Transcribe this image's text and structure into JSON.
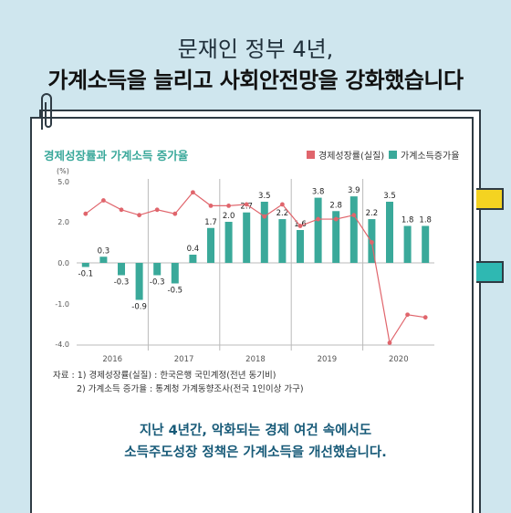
{
  "headline": {
    "line1": "문재인 정부 4년,",
    "line2": "가계소득을 늘리고 사회안전망을 강화했습니다"
  },
  "colors": {
    "background": "#cfe6ee",
    "line_series": "#e0656c",
    "bar_series": "#3aa99a",
    "tab_yellow": "#f4d321",
    "tab_teal": "#2fb8b2"
  },
  "chart_data": {
    "type": "bar",
    "title": "경제성장률과 가계소득 증가율",
    "yunit": "(%)",
    "ylim": [
      -4.0,
      5.0
    ],
    "yticks": [
      "5.0",
      "2.0",
      "0.0",
      "-1.0",
      "-4.0"
    ],
    "years": [
      "2016",
      "2017",
      "2018",
      "2019",
      "2020"
    ],
    "legend_position": "top-right",
    "grid": false,
    "series": [
      {
        "name": "경제성장률(실질)",
        "type": "line",
        "values": [
          2.6,
          3.6,
          2.9,
          2.5,
          2.9,
          2.6,
          4.2,
          3.2,
          3.2,
          3.3,
          2.4,
          3.3,
          1.8,
          2.2,
          2.2,
          2.5,
          1.0,
          -3.9,
          -1.8,
          -2.0
        ]
      },
      {
        "name": "가계소득증가율",
        "type": "bar",
        "values": [
          -0.1,
          0.3,
          -0.3,
          -0.9,
          -0.3,
          -0.5,
          0.4,
          1.7,
          2.0,
          2.7,
          3.5,
          2.2,
          1.6,
          3.8,
          2.8,
          3.9,
          2.2,
          3.5,
          1.8,
          1.8
        ],
        "labels": [
          "-0.1",
          "0.3",
          "-0.3",
          "-0.9",
          "-0.3",
          "-0.5",
          "0.4",
          "1.7",
          "2.0",
          "2.7",
          "3.5",
          "2.2",
          "1.6",
          "3.8",
          "2.8",
          "3.9",
          "2.2",
          "3.5",
          "1.8",
          "1.8"
        ]
      }
    ]
  },
  "source": {
    "line1": "자료 : 1) 경제성장률(실질) : 한국은행 국민계정(전년 동기비)",
    "line2": "2) 가계소득 증가율 : 통계청 가계동향조사(전국 1인이상 가구)"
  },
  "closing": {
    "line1": "지난 4년간, 악화되는 경제 여건 속에서도",
    "line2": "소득주도성장 정책은 가계소득을 개선했습니다."
  }
}
